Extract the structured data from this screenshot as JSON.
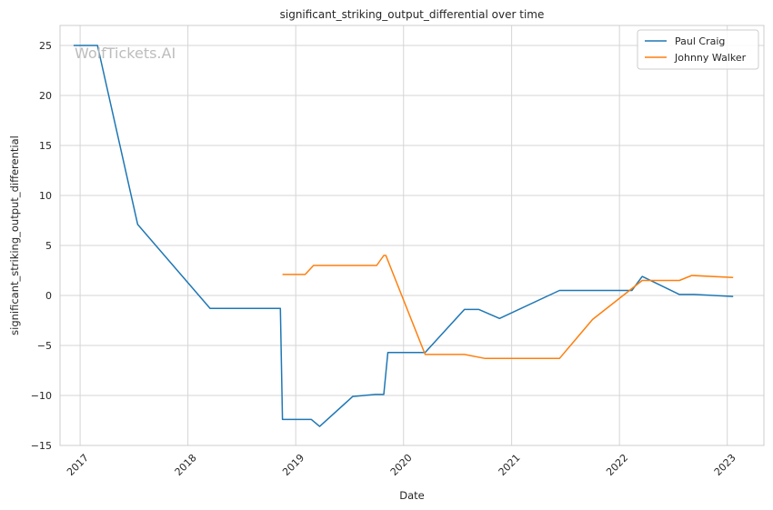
{
  "chart_data": {
    "type": "line",
    "title": "significant_striking_output_differential over time",
    "xlabel": "Date",
    "ylabel": "significant_striking_output_differential",
    "watermark": "WolfTickets.AI",
    "x_ticks": [
      "2017-01-01",
      "2018-01-01",
      "2019-01-01",
      "2020-01-01",
      "2021-01-01",
      "2022-01-01",
      "2023-01-01"
    ],
    "x_tick_labels": [
      "2017",
      "2018",
      "2019",
      "2020",
      "2021",
      "2022",
      "2023"
    ],
    "xlim": [
      "2016-10-25",
      "2023-05-05"
    ],
    "ylim": [
      -15,
      27
    ],
    "y_ticks": [
      -15,
      -10,
      -5,
      0,
      5,
      10,
      15,
      20,
      25
    ],
    "y_tick_labels": [
      "−15",
      "−10",
      "−5",
      "0",
      "5",
      "10",
      "15",
      "20",
      "25"
    ],
    "grid": true,
    "legend_position": "top-right",
    "series": [
      {
        "name": "Paul Craig",
        "color": "#1f77b4",
        "points": [
          [
            "2016-12-10",
            25.0
          ],
          [
            "2017-03-01",
            25.0
          ],
          [
            "2017-07-15",
            7.1
          ],
          [
            "2018-03-17",
            -1.3
          ],
          [
            "2018-11-10",
            -1.3
          ],
          [
            "2018-11-17",
            -12.4
          ],
          [
            "2019-02-23",
            -12.4
          ],
          [
            "2019-03-23",
            -13.1
          ],
          [
            "2019-07-13",
            -10.1
          ],
          [
            "2019-09-28",
            -9.9
          ],
          [
            "2019-10-26",
            -9.9
          ],
          [
            "2019-11-09",
            -5.7
          ],
          [
            "2020-03-14",
            -5.7
          ],
          [
            "2020-07-25",
            -1.4
          ],
          [
            "2020-09-12",
            -1.4
          ],
          [
            "2020-11-21",
            -2.3
          ],
          [
            "2021-06-12",
            0.5
          ],
          [
            "2022-02-12",
            0.5
          ],
          [
            "2022-03-19",
            1.9
          ],
          [
            "2022-07-23",
            0.1
          ],
          [
            "2022-09-10",
            0.1
          ],
          [
            "2023-01-21",
            -0.1
          ]
        ]
      },
      {
        "name": "Johnny Walker",
        "color": "#ff7f0e",
        "points": [
          [
            "2018-11-17",
            2.1
          ],
          [
            "2019-02-02",
            2.1
          ],
          [
            "2019-03-02",
            3.0
          ],
          [
            "2019-10-02",
            3.0
          ],
          [
            "2019-10-26",
            4.0
          ],
          [
            "2019-11-02",
            4.0
          ],
          [
            "2020-03-14",
            -5.9
          ],
          [
            "2020-07-25",
            -5.9
          ],
          [
            "2020-10-03",
            -6.3
          ],
          [
            "2021-06-12",
            -6.3
          ],
          [
            "2021-10-02",
            -2.4
          ],
          [
            "2022-03-19",
            1.5
          ],
          [
            "2022-07-23",
            1.5
          ],
          [
            "2022-09-03",
            2.0
          ],
          [
            "2023-01-21",
            1.8
          ]
        ]
      }
    ]
  }
}
